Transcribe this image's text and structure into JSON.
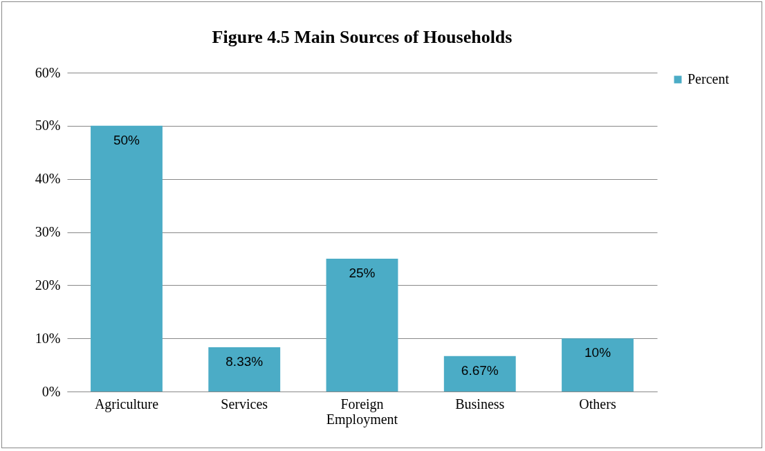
{
  "chart_data": {
    "type": "bar",
    "title": "Figure  4.5 Main Sources of Households",
    "categories": [
      "Agriculture",
      "Services",
      "Foreign Employment",
      "Business",
      "Others"
    ],
    "series": [
      {
        "name": "Percent",
        "color": "#4bacc6",
        "values": [
          50,
          8.33,
          25,
          6.67,
          10
        ],
        "value_labels": [
          "50%",
          "8.33%",
          "25%",
          "6.67%",
          "10%"
        ]
      }
    ],
    "ylim": [
      0,
      60
    ],
    "yticks": [
      {
        "value": 0,
        "label": "0%"
      },
      {
        "value": 10,
        "label": "10%"
      },
      {
        "value": 20,
        "label": "20%"
      },
      {
        "value": 30,
        "label": "30%"
      },
      {
        "value": 40,
        "label": "40%"
      },
      {
        "value": 50,
        "label": "50%"
      },
      {
        "value": 60,
        "label": "60%"
      }
    ],
    "grid": "y",
    "legend": "right"
  }
}
